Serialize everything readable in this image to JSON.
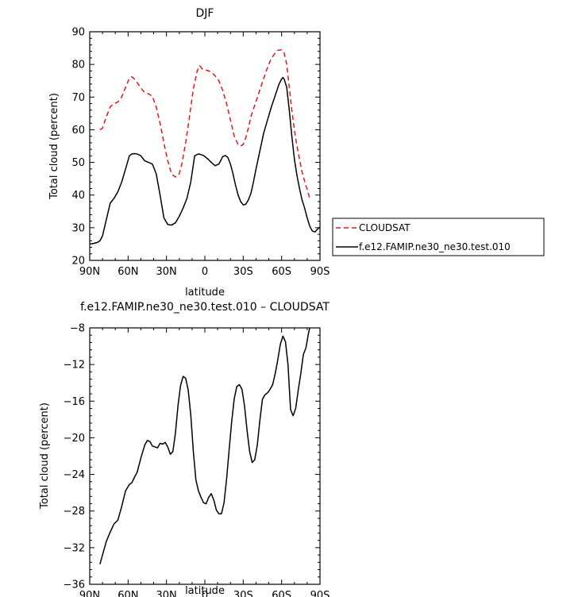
{
  "chart_data": [
    {
      "type": "line",
      "title": "DJF",
      "xlabel": "latitude",
      "ylabel": "Total cloud (percent)",
      "xlim": [
        -90,
        90
      ],
      "ylim": [
        20,
        90
      ],
      "xticks": [
        -90,
        -60,
        -30,
        0,
        30,
        60,
        90
      ],
      "xtick_labels": [
        "90N",
        "60N",
        "30N",
        "0",
        "30S",
        "60S",
        "90S"
      ],
      "yticks": [
        20,
        30,
        40,
        50,
        60,
        70,
        80,
        90
      ],
      "ytick_labels": [
        "20",
        "30",
        "40",
        "50",
        "60",
        "70",
        "80",
        "90"
      ],
      "grid": false,
      "legend": "right, outside plot",
      "series": [
        {
          "name": "CLOUDSAT",
          "color": "#e8161b",
          "dash": "dashed",
          "x": [
            -82,
            -80,
            -77,
            -74,
            -71,
            -68,
            -65,
            -62,
            -59,
            -57,
            -55,
            -53,
            -50,
            -47,
            -44,
            -41,
            -38,
            -35,
            -32,
            -29,
            -26,
            -23,
            -20,
            -18,
            -15,
            -12,
            -9,
            -6,
            -4,
            -2,
            0,
            2,
            5,
            8,
            11,
            14,
            17,
            20,
            23,
            26,
            28,
            30,
            32,
            34,
            36,
            39,
            42,
            45,
            48,
            51,
            54,
            57,
            60,
            62,
            64,
            66,
            68,
            70,
            72,
            74,
            76,
            79,
            82
          ],
          "y": [
            60,
            60.5,
            64,
            67,
            68,
            68.5,
            70,
            73,
            75.8,
            76.2,
            75.5,
            74.5,
            72.8,
            71.3,
            71,
            70.2,
            67,
            62,
            56,
            50.5,
            46.5,
            45.5,
            46.5,
            49.5,
            56,
            64,
            72.5,
            78,
            79.6,
            78.6,
            78.2,
            78.2,
            77.6,
            76.5,
            75,
            72,
            68,
            63,
            58,
            55.5,
            55,
            55.5,
            57.5,
            60.5,
            64,
            67.5,
            71,
            74.5,
            78,
            81,
            83,
            84.3,
            84.5,
            83.5,
            80,
            73,
            66,
            60,
            55,
            51,
            47,
            43,
            39
          ]
        },
        {
          "name": "f.e12.FAMIP.ne30_ne30.test.010",
          "color": "#000000",
          "dash": "solid",
          "x": [
            -90,
            -87,
            -84,
            -82,
            -80,
            -77,
            -74,
            -71,
            -68,
            -65,
            -62,
            -59,
            -57,
            -55,
            -53,
            -50,
            -47,
            -44,
            -41,
            -38,
            -35,
            -32,
            -29,
            -26,
            -23,
            -20,
            -17,
            -14,
            -11,
            -8,
            -5,
            -3,
            -1,
            1,
            3,
            5,
            8,
            11,
            14,
            16,
            18,
            20,
            22,
            24,
            26,
            28,
            30,
            32,
            34,
            36,
            38,
            40,
            43,
            46,
            49,
            52,
            55,
            58,
            60,
            61,
            62,
            64,
            66,
            68,
            70,
            72,
            74,
            76,
            78,
            80,
            82,
            84,
            86,
            88,
            90
          ],
          "y": [
            25,
            25.2,
            25.5,
            26,
            27.5,
            32.5,
            37.5,
            39,
            41,
            44,
            48,
            52,
            52.6,
            52.7,
            52.6,
            52,
            50.5,
            50,
            49.5,
            46.5,
            40,
            33,
            31,
            30.8,
            31.5,
            33.5,
            36,
            39,
            44,
            52,
            52.6,
            52.4,
            52.1,
            51.5,
            50.8,
            50,
            49,
            49.5,
            51.8,
            52.1,
            51.5,
            49.5,
            46.5,
            43,
            40,
            38,
            37,
            37.2,
            38.5,
            40.5,
            44,
            48,
            53.5,
            59,
            63,
            67,
            70.5,
            74,
            75.5,
            76,
            75.5,
            73,
            66,
            58,
            51,
            46,
            42,
            38.5,
            36,
            33,
            30.5,
            29,
            28.7,
            29.5,
            30.3
          ]
        }
      ]
    },
    {
      "type": "line",
      "title": "f.e12.FAMIP.ne30_ne30.test.010 – CLOUDSAT",
      "xlabel": "latitude",
      "ylabel": "Total cloud (percent)",
      "xlim": [
        -90,
        90
      ],
      "ylim": [
        -36,
        -8
      ],
      "xticks": [
        -90,
        -60,
        -30,
        0,
        30,
        60,
        90
      ],
      "xtick_labels": [
        "90N",
        "60N",
        "30N",
        "0",
        "30S",
        "60S",
        "90S"
      ],
      "yticks": [
        -36,
        -32,
        -28,
        -24,
        -20,
        -16,
        -12,
        -8
      ],
      "ytick_labels": [
        "−36",
        "−32",
        "−28",
        "−24",
        "−20",
        "−16",
        "−12",
        "−8"
      ],
      "grid": false,
      "series": [
        {
          "color": "#000000",
          "dash": "solid",
          "x": [
            -82,
            -80,
            -77,
            -74,
            -71,
            -68,
            -65,
            -62,
            -59,
            -57,
            -55,
            -53,
            -50,
            -47,
            -45,
            -43,
            -41,
            -39,
            -37,
            -35,
            -33,
            -31,
            -29,
            -27,
            -25,
            -23,
            -21,
            -19,
            -17,
            -15,
            -13,
            -11,
            -9,
            -7,
            -5,
            -3,
            -1,
            1,
            3,
            5,
            7,
            9,
            11,
            13,
            15,
            17,
            19,
            21,
            23,
            25,
            27,
            29,
            31,
            33,
            35,
            37,
            39,
            41,
            43,
            45,
            47,
            49,
            51,
            53,
            55,
            57,
            59,
            61,
            63,
            65,
            67,
            69,
            71,
            73,
            75,
            77,
            79,
            81,
            82
          ],
          "y": [
            -33.8,
            -32.8,
            -31.3,
            -30.3,
            -29.4,
            -29,
            -27.5,
            -25.8,
            -25.1,
            -24.9,
            -24.3,
            -23.8,
            -22.2,
            -20.8,
            -20.3,
            -20.4,
            -20.9,
            -21,
            -21.1,
            -20.6,
            -20.7,
            -20.5,
            -21,
            -21.8,
            -21.5,
            -19.5,
            -16.5,
            -14.3,
            -13.3,
            -13.5,
            -14.8,
            -17.5,
            -21.5,
            -24.6,
            -25.8,
            -26.5,
            -27.1,
            -27.2,
            -26.5,
            -26.1,
            -26.8,
            -27.9,
            -28.3,
            -28.3,
            -27.1,
            -24.5,
            -21.3,
            -18.2,
            -15.7,
            -14.4,
            -14.2,
            -14.7,
            -16.5,
            -19.2,
            -21.5,
            -22.7,
            -22.4,
            -20.8,
            -18.1,
            -15.8,
            -15.3,
            -15.1,
            -14.7,
            -14.2,
            -13,
            -11.5,
            -9.8,
            -8.9,
            -9.5,
            -12,
            -16.9,
            -17.6,
            -16.8,
            -14.8,
            -13,
            -10.9,
            -10.2,
            -8.6,
            -8
          ]
        }
      ]
    }
  ]
}
